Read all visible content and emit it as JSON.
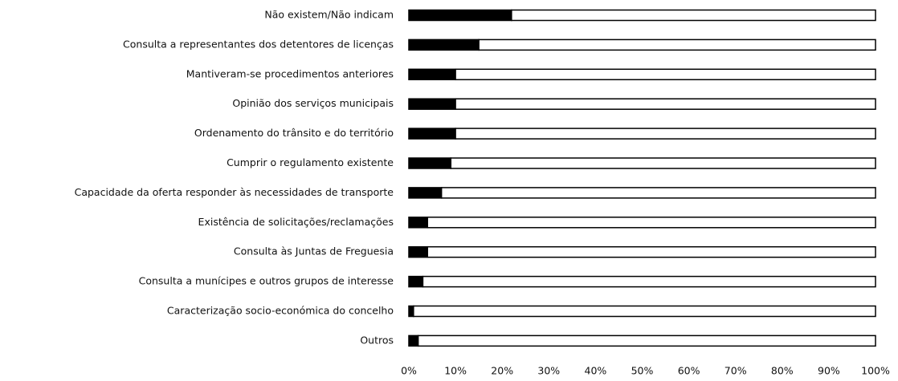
{
  "chart_data": {
    "type": "stacked_barh",
    "categories": [
      "Não existem/Não indicam",
      "Consulta a representantes dos detentores de licenças",
      "Mantiveram-se procedimentos anteriores",
      "Opinião dos serviços municipais",
      "Ordenamento do trânsito e do território",
      "Cumprir o regulamento existente",
      "Capacidade da oferta responder às necessidades de transporte",
      "Existência de solicitações/reclamações",
      "Consulta às Juntas de Freguesia",
      "Consulta a munícipes e outros grupos de interesse",
      "Caracterização socio-económica do concelho",
      "Outros"
    ],
    "series": [
      {
        "color": "#000000",
        "values": [
          22,
          15,
          10,
          10,
          10,
          9,
          7,
          4,
          4,
          3,
          1,
          2
        ]
      },
      {
        "color": "#ffffff",
        "values": [
          78,
          85,
          90,
          90,
          90,
          91,
          93,
          96,
          96,
          97,
          99,
          98
        ]
      }
    ],
    "xlim": [
      0,
      100
    ],
    "xticks": [
      {
        "value": 0,
        "label": "0%"
      },
      {
        "value": 10,
        "label": "10%"
      },
      {
        "value": 20,
        "label": "20%"
      },
      {
        "value": 30,
        "label": "30%"
      },
      {
        "value": 40,
        "label": "40%"
      },
      {
        "value": 50,
        "label": "50%"
      },
      {
        "value": 60,
        "label": "60%"
      },
      {
        "value": 70,
        "label": "70%"
      },
      {
        "value": 80,
        "label": "80%"
      },
      {
        "value": 90,
        "label": "90%"
      },
      {
        "value": 100,
        "label": "100%"
      }
    ],
    "grid": false
  }
}
